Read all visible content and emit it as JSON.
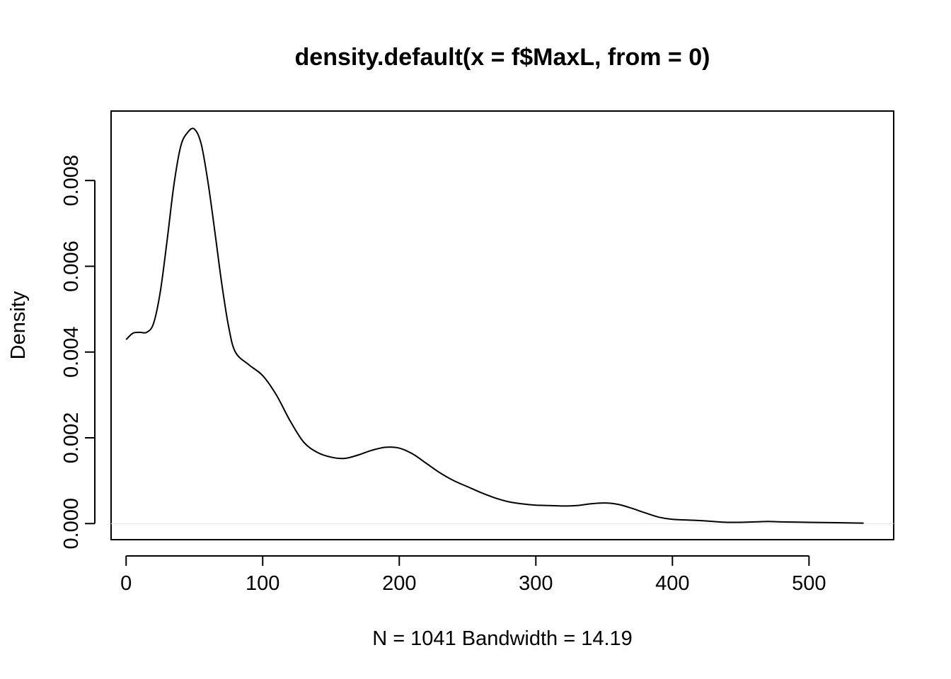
{
  "chart_data": {
    "type": "line",
    "title": "density.default(x = f$MaxL, from = 0)",
    "xlabel": "N = 1041   Bandwidth = 14.19",
    "ylabel": "Density",
    "xlim": [
      -11,
      562
    ],
    "ylim": [
      -0.000375,
      0.00962
    ],
    "x_ticks": [
      0,
      100,
      200,
      300,
      400,
      500
    ],
    "x_tick_labels": [
      "0",
      "100",
      "200",
      "300",
      "400",
      "500"
    ],
    "y_ticks": [
      0.0,
      0.002,
      0.004,
      0.006,
      0.008
    ],
    "y_tick_labels": [
      "0.000",
      "0.002",
      "0.004",
      "0.006",
      "0.008"
    ],
    "grid": false,
    "legend": "none",
    "series": [
      {
        "x": [
          0,
          5,
          10,
          15,
          20,
          25,
          30,
          35,
          40,
          45,
          50,
          55,
          60,
          65,
          70,
          75,
          80,
          90,
          100,
          110,
          120,
          130,
          140,
          150,
          160,
          170,
          180,
          190,
          200,
          210,
          220,
          230,
          240,
          250,
          260,
          270,
          280,
          290,
          300,
          310,
          320,
          330,
          340,
          350,
          360,
          370,
          380,
          390,
          400,
          420,
          440,
          460,
          470,
          480,
          500,
          520,
          540
        ],
        "y": [
          0.00429,
          0.00444,
          0.00446,
          0.00446,
          0.00466,
          0.0054,
          0.0066,
          0.0079,
          0.0088,
          0.00912,
          0.0092,
          0.00885,
          0.00795,
          0.0068,
          0.0056,
          0.0046,
          0.004,
          0.0037,
          0.00345,
          0.003,
          0.0024,
          0.0019,
          0.00166,
          0.00155,
          0.00152,
          0.0016,
          0.00171,
          0.00178,
          0.00176,
          0.00162,
          0.0014,
          0.00118,
          0.001,
          0.00086,
          0.00072,
          0.0006,
          0.00051,
          0.00046,
          0.00043,
          0.00042,
          0.00041,
          0.00042,
          0.00046,
          0.00048,
          0.00045,
          0.00036,
          0.00025,
          0.00015,
          0.0001,
          7e-05,
          3e-05,
          4e-05,
          5e-05,
          4e-05,
          3e-05,
          2e-05,
          1e-05
        ]
      }
    ]
  }
}
